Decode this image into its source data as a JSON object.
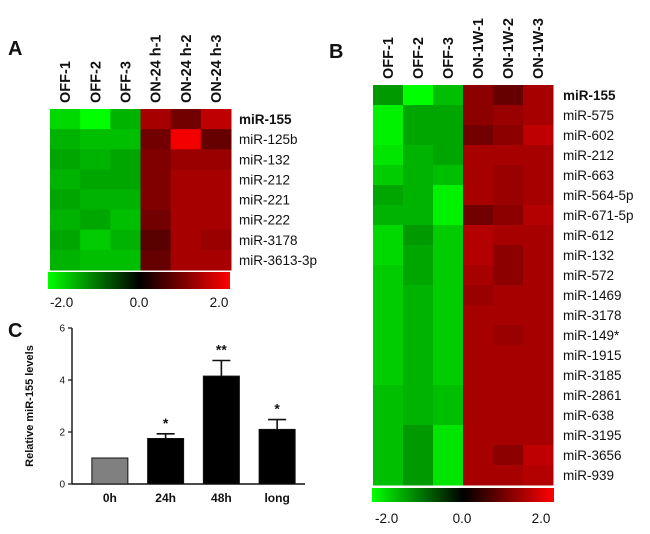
{
  "panels": {
    "a": "A",
    "b": "B",
    "c": "C"
  },
  "chart_data": [
    {
      "type": "heatmap",
      "panel": "A",
      "columns": [
        "OFF-1",
        "OFF-2",
        "OFF-3",
        "ON-24 h-1",
        "ON-24 h-2",
        "ON-24 h-3"
      ],
      "rows": [
        "miR-155",
        "miR-125b",
        "miR-132",
        "miR-212",
        "miR-221",
        "miR-222",
        "miR-3178",
        "miR-3613-3p"
      ],
      "bold_rows": [
        "miR-155"
      ],
      "values": [
        [
          -1.7,
          -2.0,
          -1.4,
          1.3,
          0.9,
          1.5
        ],
        [
          -1.4,
          -1.5,
          -1.5,
          0.9,
          1.9,
          0.8
        ],
        [
          -1.3,
          -1.4,
          -1.3,
          1.0,
          1.2,
          1.2
        ],
        [
          -1.4,
          -1.3,
          -1.3,
          1.0,
          1.3,
          1.3
        ],
        [
          -1.3,
          -1.4,
          -1.4,
          1.0,
          1.3,
          1.3
        ],
        [
          -1.4,
          -1.3,
          -1.5,
          0.9,
          1.3,
          1.3
        ],
        [
          -1.3,
          -1.6,
          -1.4,
          0.7,
          1.3,
          1.2
        ],
        [
          -1.4,
          -1.5,
          -1.5,
          0.8,
          1.3,
          1.3
        ]
      ],
      "colorbar": {
        "min": -2.0,
        "max": 2.0,
        "labels": [
          "-2.0",
          "0.0",
          "2.0"
        ],
        "low_color": "#00ff00",
        "mid_color": "#000000",
        "high_color": "#ff0000"
      }
    },
    {
      "type": "heatmap",
      "panel": "B",
      "columns": [
        "OFF-1",
        "OFF-2",
        "OFF-3",
        "ON-1W-1",
        "ON-1W-2",
        "ON-1W-3"
      ],
      "rows": [
        "miR-155",
        "miR-575",
        "miR-602",
        "miR-212",
        "miR-663",
        "miR-564-5p",
        "miR-671-5p",
        "miR-612",
        "miR-132",
        "miR-572",
        "miR-1469",
        "miR-3178",
        "miR-149*",
        "miR-1915",
        "miR-3185",
        "miR-2861",
        "miR-638",
        "miR-3195",
        "miR-3656",
        "miR-939"
      ],
      "bold_rows": [
        "miR-155"
      ],
      "values": [
        [
          -1.2,
          -2.0,
          -1.5,
          1.1,
          0.8,
          1.3
        ],
        [
          -1.9,
          -1.3,
          -1.3,
          1.1,
          1.2,
          1.3
        ],
        [
          -1.9,
          -1.3,
          -1.3,
          0.9,
          1.1,
          1.5
        ],
        [
          -1.8,
          -1.4,
          -1.3,
          1.3,
          1.3,
          1.3
        ],
        [
          -1.6,
          -1.4,
          -1.5,
          1.3,
          1.2,
          1.3
        ],
        [
          -1.3,
          -1.4,
          -1.9,
          1.3,
          1.2,
          1.3
        ],
        [
          -1.4,
          -1.4,
          -1.9,
          0.9,
          1.1,
          1.4
        ],
        [
          -1.7,
          -1.2,
          -1.6,
          1.4,
          1.3,
          1.3
        ],
        [
          -1.7,
          -1.3,
          -1.6,
          1.4,
          1.1,
          1.3
        ],
        [
          -1.6,
          -1.3,
          -1.6,
          1.3,
          1.1,
          1.3
        ],
        [
          -1.6,
          -1.4,
          -1.6,
          1.2,
          1.3,
          1.3
        ],
        [
          -1.6,
          -1.4,
          -1.6,
          1.3,
          1.3,
          1.3
        ],
        [
          -1.6,
          -1.4,
          -1.6,
          1.3,
          1.2,
          1.3
        ],
        [
          -1.6,
          -1.4,
          -1.6,
          1.3,
          1.3,
          1.3
        ],
        [
          -1.6,
          -1.4,
          -1.6,
          1.3,
          1.3,
          1.3
        ],
        [
          -1.5,
          -1.4,
          -1.5,
          1.3,
          1.3,
          1.3
        ],
        [
          -1.5,
          -1.4,
          -1.5,
          1.3,
          1.3,
          1.3
        ],
        [
          -1.5,
          -1.2,
          -1.8,
          1.3,
          1.3,
          1.3
        ],
        [
          -1.5,
          -1.2,
          -1.8,
          1.3,
          1.1,
          1.5
        ],
        [
          -1.5,
          -1.2,
          -1.8,
          1.3,
          1.3,
          1.4
        ]
      ],
      "colorbar": {
        "min": -2.0,
        "max": 2.0,
        "labels": [
          "-2.0",
          "0.0",
          "2.0"
        ],
        "low_color": "#00ff00",
        "mid_color": "#000000",
        "high_color": "#ff0000"
      }
    },
    {
      "type": "bar",
      "panel": "C",
      "categories": [
        "0h",
        "24h",
        "48h",
        "long"
      ],
      "values": [
        1.0,
        1.75,
        4.15,
        2.1
      ],
      "errors": [
        0,
        0.18,
        0.6,
        0.38
      ],
      "significance": [
        "",
        "*",
        "**",
        "*"
      ],
      "colors": [
        "#808080",
        "#000000",
        "#000000",
        "#000000"
      ],
      "ylabel": "Relative miR-155 levels",
      "ylim": [
        0,
        6
      ],
      "yticks": [
        "0",
        "2",
        "4",
        "6"
      ],
      "grid": false
    }
  ]
}
